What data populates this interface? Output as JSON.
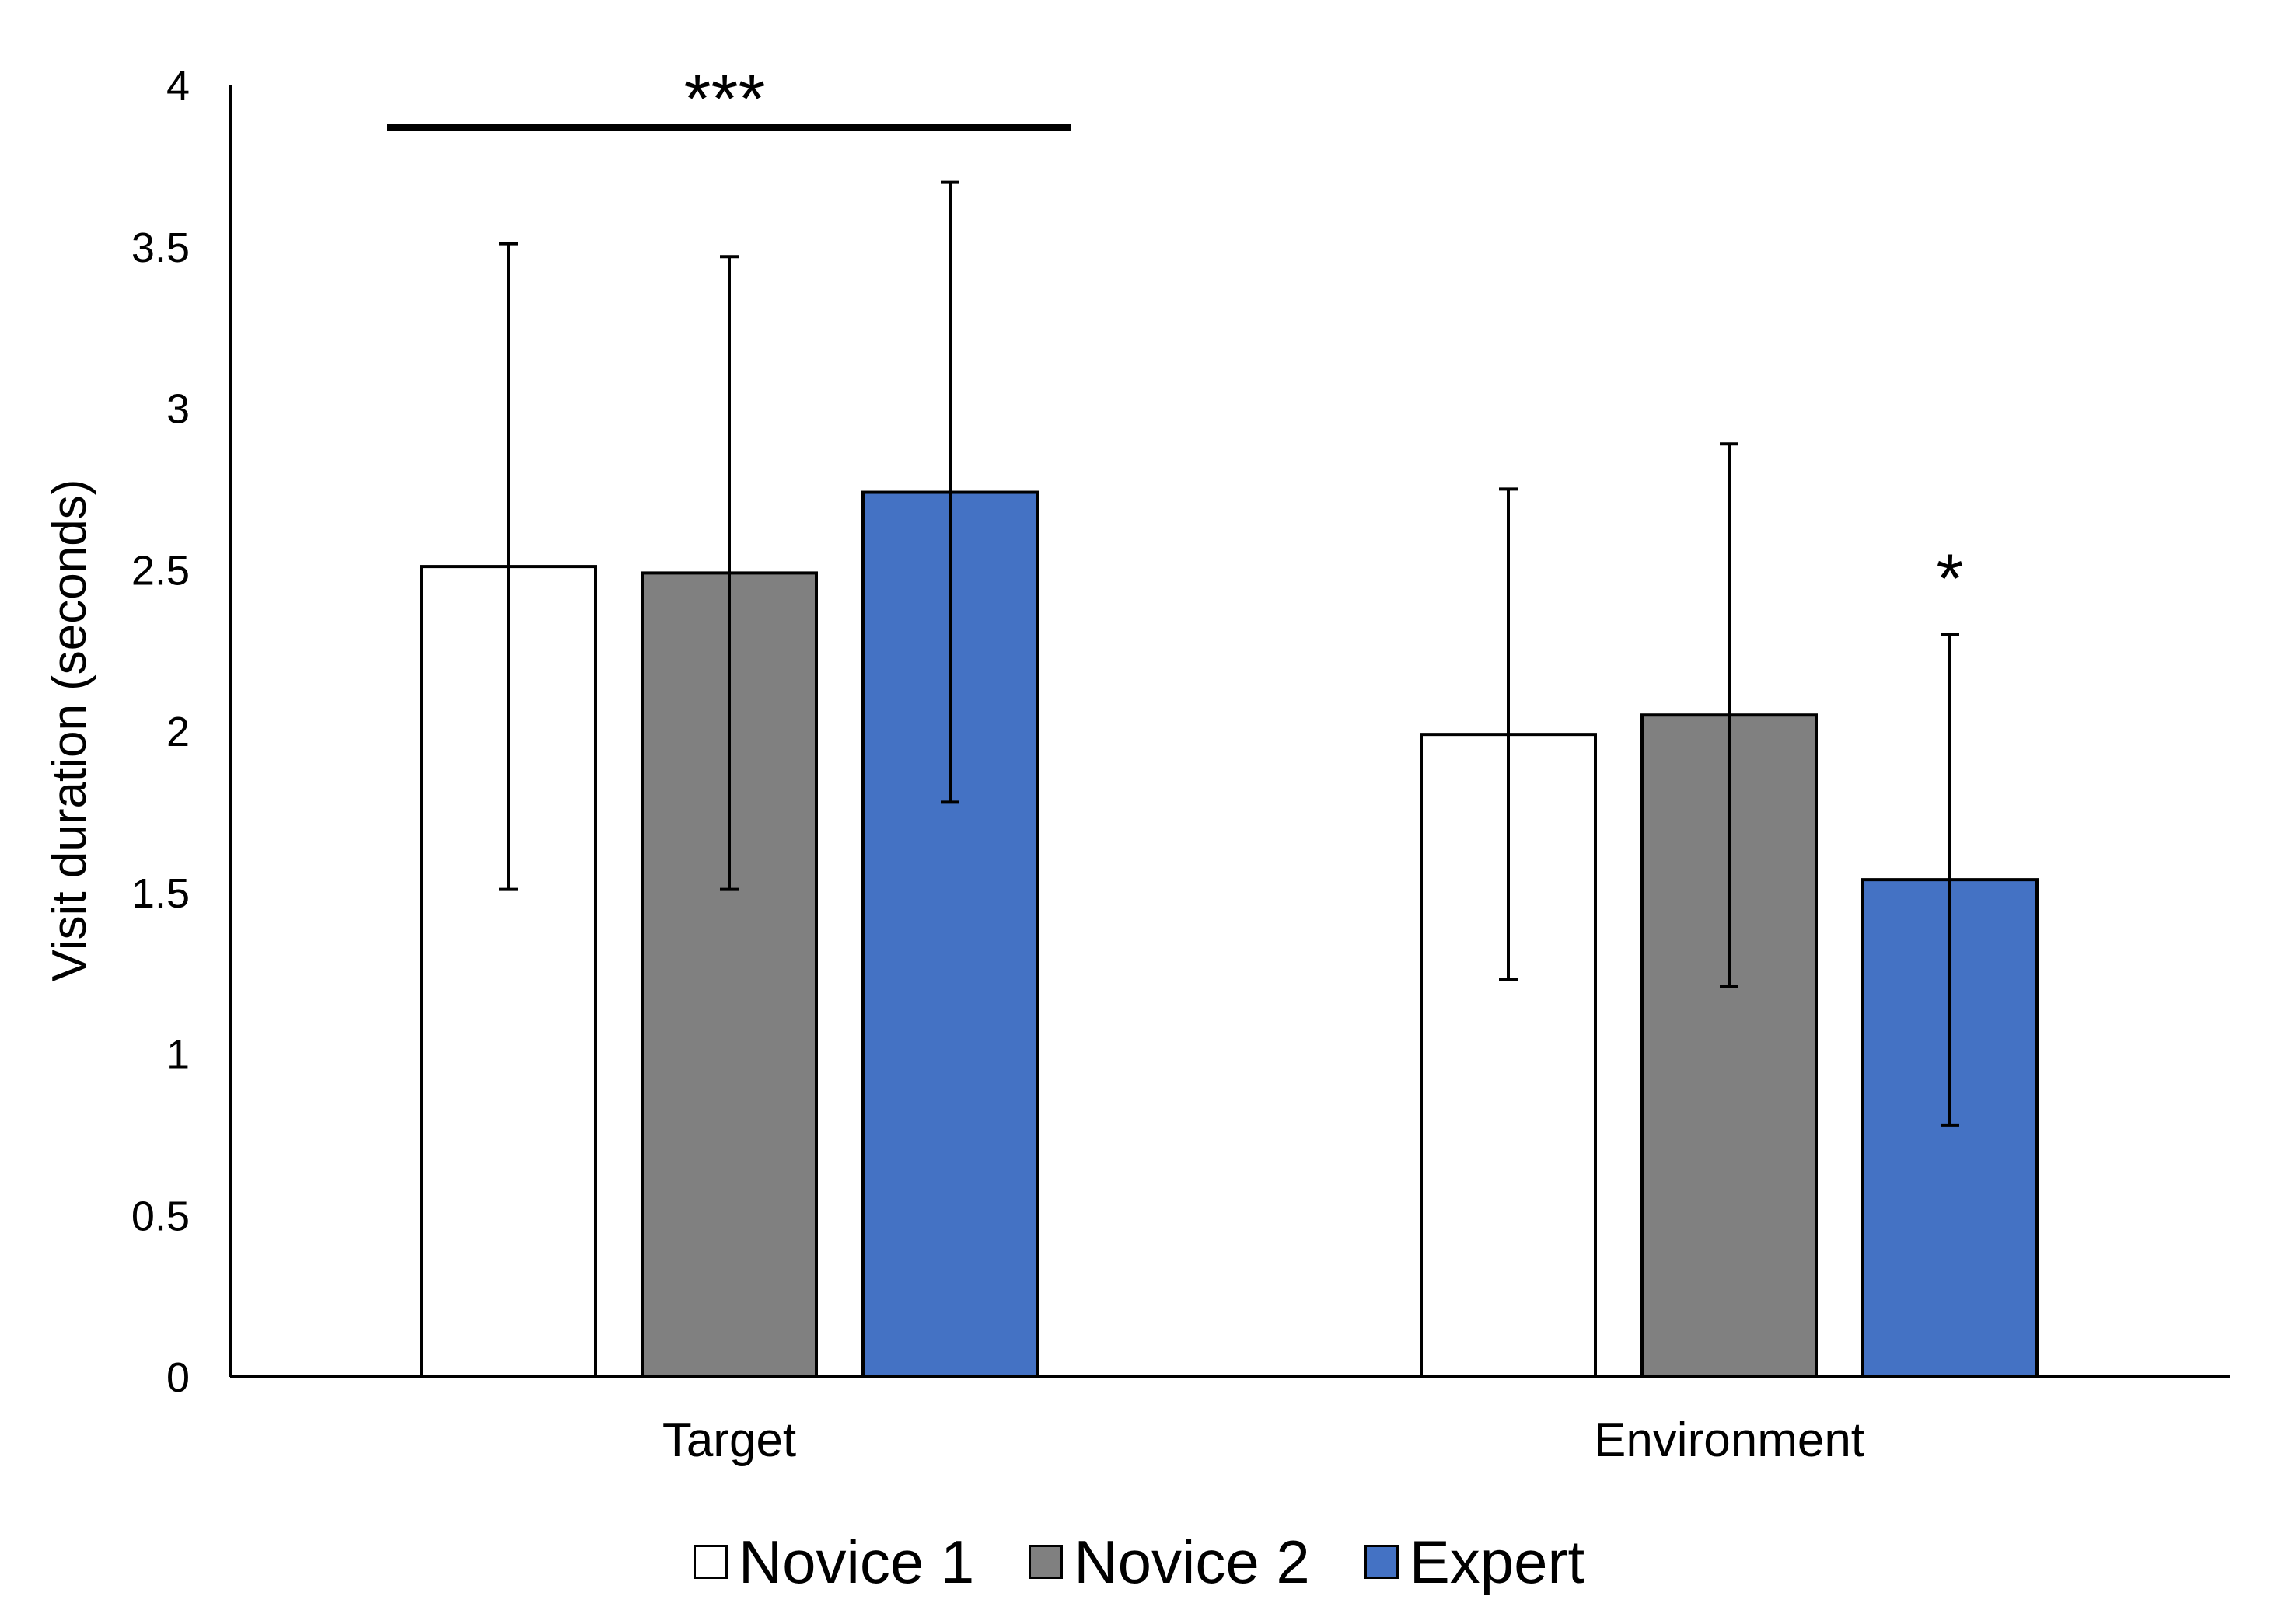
{
  "chart_data": {
    "type": "bar",
    "title": "",
    "xlabel": "",
    "ylabel": "Visit duration (seconds)",
    "ylim": [
      0,
      4
    ],
    "yticks": [
      "0",
      "0.5",
      "1",
      "1.5",
      "2",
      "2.5",
      "3",
      "3.5",
      "4"
    ],
    "grid": false,
    "legend_position": "bottom",
    "categories": [
      "Target",
      "Environment"
    ],
    "series": [
      {
        "name": "Novice 1",
        "color": "#ffffff",
        "values": [
          2.51,
          1.99
        ],
        "errors": [
          1.0,
          0.76
        ]
      },
      {
        "name": "Novice 2",
        "color": "#808080",
        "values": [
          2.49,
          2.05
        ],
        "errors": [
          0.98,
          0.84
        ]
      },
      {
        "name": "Expert",
        "color": "#4472c4",
        "values": [
          2.74,
          1.54
        ],
        "errors": [
          0.96,
          0.76
        ]
      }
    ],
    "annotations": [
      {
        "text": "***",
        "category": "Target",
        "type": "bracket",
        "y": 3.87
      },
      {
        "text": "*",
        "category": "Environment",
        "series": "Expert",
        "y": 2.5
      }
    ]
  }
}
